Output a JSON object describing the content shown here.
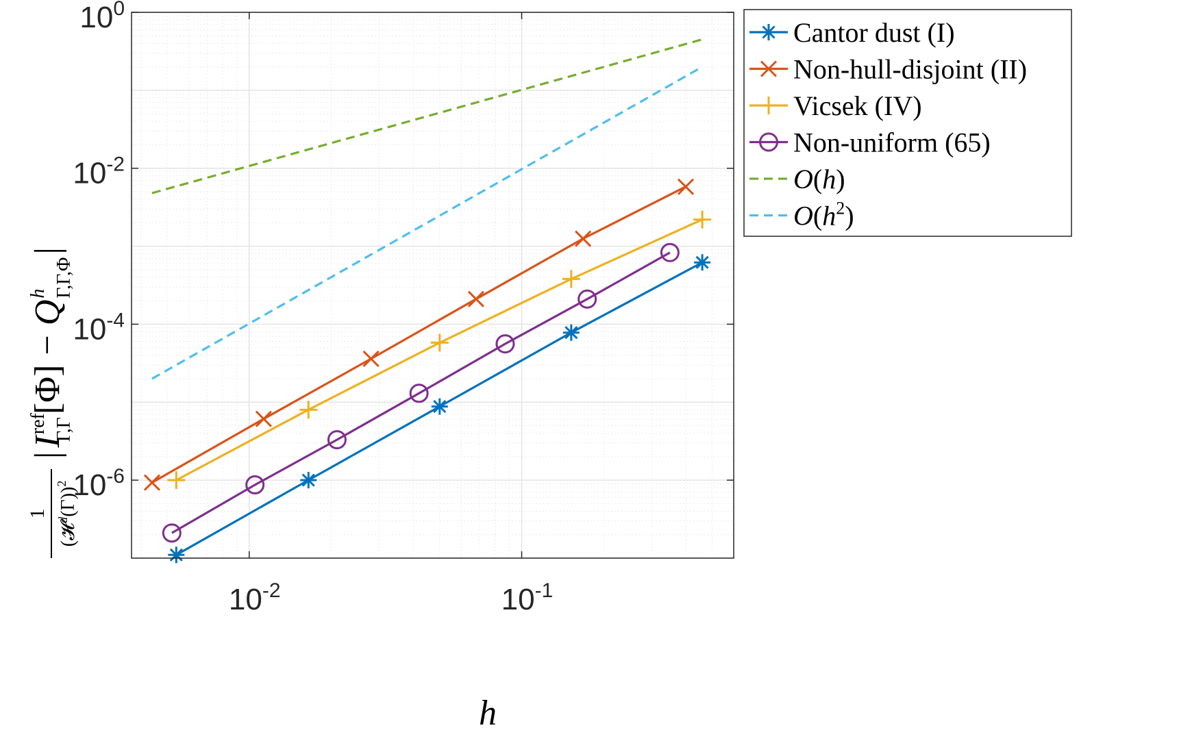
{
  "chart_data": {
    "type": "line",
    "scale": {
      "x": "log",
      "y": "log"
    },
    "xlabel": "h",
    "ylabel": "1/(H^d(Γ))^2 |I^ref_{Γ,Γ}[Φ] − Q^h_{Γ,Γ,Φ}|",
    "ylabel_parts": {
      "frac_num": "1",
      "frac_den": "(𝓗",
      "frac_den_sup": "d",
      "frac_den_tail": "(Γ))",
      "frac_den_pow": "2",
      "bar_open": "|",
      "I": "I",
      "I_sup": "ref",
      "I_sub": "Γ,Γ",
      "phi": "[Φ]",
      "minus": "−",
      "Q": "Q",
      "Q_sup": "h",
      "Q_sub": "Γ,Γ,Φ",
      "bar_close": "|"
    },
    "xlim": [
      0.0037,
      0.6
    ],
    "ylim": [
      1e-07,
      1
    ],
    "xticks": [
      {
        "value": 0.01,
        "base": "10",
        "exp": "-2"
      },
      {
        "value": 0.1,
        "base": "10",
        "exp": "-1"
      }
    ],
    "yticks": [
      {
        "value": 1e-06,
        "base": "10",
        "exp": "-6"
      },
      {
        "value": 0.0001,
        "base": "10",
        "exp": "-4"
      },
      {
        "value": 0.01,
        "base": "10",
        "exp": "-2"
      },
      {
        "value": 1,
        "base": "10",
        "exp": "0"
      }
    ],
    "grid": true,
    "legend_position": "outside-right-top",
    "series": [
      {
        "name": "Cantor dust (I)",
        "color": "#0072BD",
        "marker": "asterisk",
        "dash": "solid",
        "x": [
          0.0054,
          0.0165,
          0.05,
          0.152,
          0.46
        ],
        "y": [
          1.1e-07,
          1e-06,
          8.8e-06,
          7.8e-05,
          0.00062
        ]
      },
      {
        "name": "Non-hull-disjoint (II)",
        "color": "#D95319",
        "marker": "x",
        "dash": "solid",
        "x": [
          0.0044,
          0.0113,
          0.028,
          0.068,
          0.168,
          0.4
        ],
        "y": [
          9.3e-07,
          6.1e-06,
          3.6e-05,
          0.00021,
          0.00125,
          0.0058
        ]
      },
      {
        "name": "Vicsek (IV)",
        "color": "#EDB120",
        "marker": "plus",
        "dash": "solid",
        "x": [
          0.0054,
          0.0165,
          0.05,
          0.152,
          0.46
        ],
        "y": [
          1e-06,
          8e-06,
          5.8e-05,
          0.00038,
          0.0022
        ]
      },
      {
        "name": "Non-uniform (65)",
        "color": "#7E2F8E",
        "marker": "circle",
        "dash": "solid",
        "x": [
          0.0052,
          0.0105,
          0.021,
          0.042,
          0.087,
          0.174,
          0.35
        ],
        "y": [
          2.1e-07,
          8.7e-07,
          3.3e-06,
          1.3e-05,
          5.6e-05,
          0.00021,
          0.00083
        ]
      },
      {
        "name": "O(h)",
        "name_parts": [
          "O",
          "(",
          "h",
          ")"
        ],
        "color": "#77AC30",
        "marker": "none",
        "dash": "dashed",
        "x": [
          0.0044,
          0.46
        ],
        "y": [
          0.0048,
          0.45
        ]
      },
      {
        "name": "O(h^2)",
        "name_parts": [
          "O",
          "(",
          "h",
          "2",
          ")"
        ],
        "color": "#4DBEEE",
        "marker": "none",
        "dash": "dashed",
        "x": [
          0.0044,
          0.46
        ],
        "y": [
          2e-05,
          0.2
        ]
      }
    ]
  }
}
